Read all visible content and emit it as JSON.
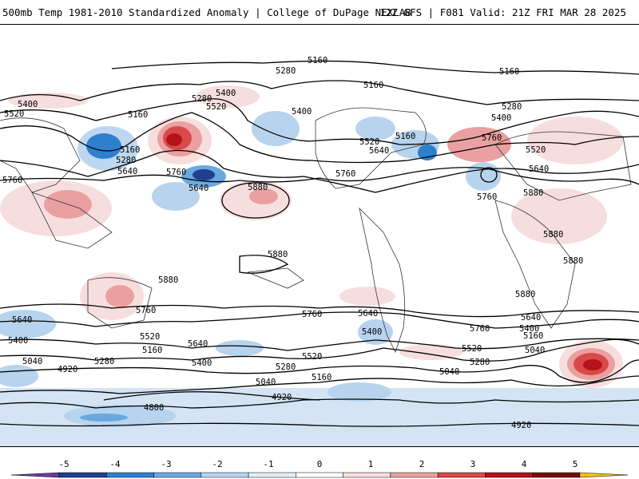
{
  "header": {
    "title": "500mb Temp 1981-2010 Standardized Anomaly | College of DuPage NEXLAB",
    "run_info": "12Z GFS | F081 Valid: 21Z FRI MAR 28 2025"
  },
  "contour_labels": [
    "5160",
    "5280",
    "5400",
    "5520",
    "5640",
    "5760",
    "5880",
    "5040",
    "4920",
    "4800"
  ],
  "colorbar": {
    "ticks": [
      "-5",
      "-4",
      "-3",
      "-2",
      "-1",
      "0",
      "1",
      "2",
      "3",
      "4",
      "5"
    ],
    "colors": [
      "#6a3d9a",
      "#1f3f8f",
      "#2f7fcf",
      "#6aa8e0",
      "#b7d3ee",
      "#e2edf8",
      "#ffffff",
      "#f7dede",
      "#eaa0a0",
      "#d84a4a",
      "#b5121b",
      "#7a0a0a",
      "#f2c21a"
    ]
  }
}
